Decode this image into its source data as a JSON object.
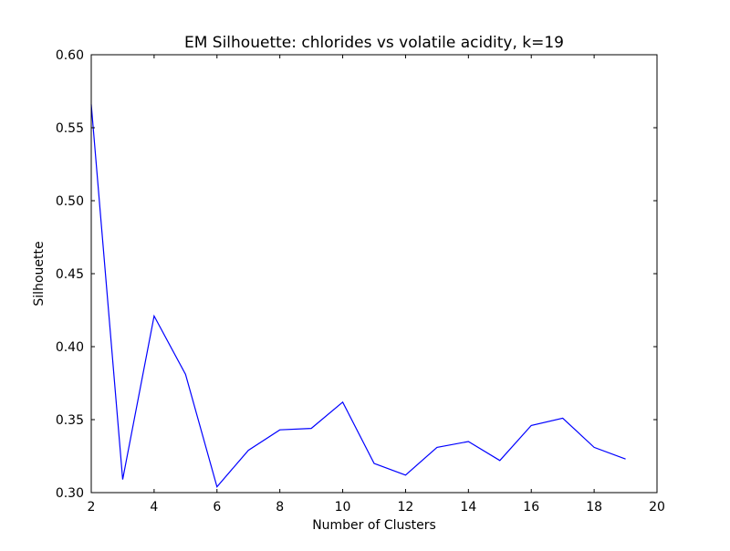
{
  "chart_data": {
    "type": "line",
    "title": "EM Silhouette: chlorides vs volatile acidity, k=19",
    "xlabel": "Number of Clusters",
    "ylabel": "Silhouette",
    "xlim": [
      2,
      20
    ],
    "ylim": [
      0.3,
      0.6
    ],
    "xticks": [
      2,
      4,
      6,
      8,
      10,
      12,
      14,
      16,
      18,
      20
    ],
    "yticks": [
      0.3,
      0.35,
      0.4,
      0.45,
      0.5,
      0.55,
      0.6
    ],
    "xtick_labels": [
      "2",
      "4",
      "6",
      "8",
      "10",
      "12",
      "14",
      "16",
      "18",
      "20"
    ],
    "ytick_labels": [
      "0.30",
      "0.35",
      "0.40",
      "0.45",
      "0.50",
      "0.55",
      "0.60"
    ],
    "grid": false,
    "series": [
      {
        "color": "#0000ff",
        "x": [
          2,
          3,
          4,
          5,
          6,
          7,
          8,
          9,
          10,
          11,
          12,
          13,
          14,
          15,
          16,
          17,
          18,
          19
        ],
        "values": [
          0.566,
          0.309,
          0.421,
          0.381,
          0.304,
          0.329,
          0.343,
          0.344,
          0.362,
          0.32,
          0.312,
          0.331,
          0.335,
          0.322,
          0.346,
          0.351,
          0.331,
          0.323
        ]
      }
    ]
  }
}
